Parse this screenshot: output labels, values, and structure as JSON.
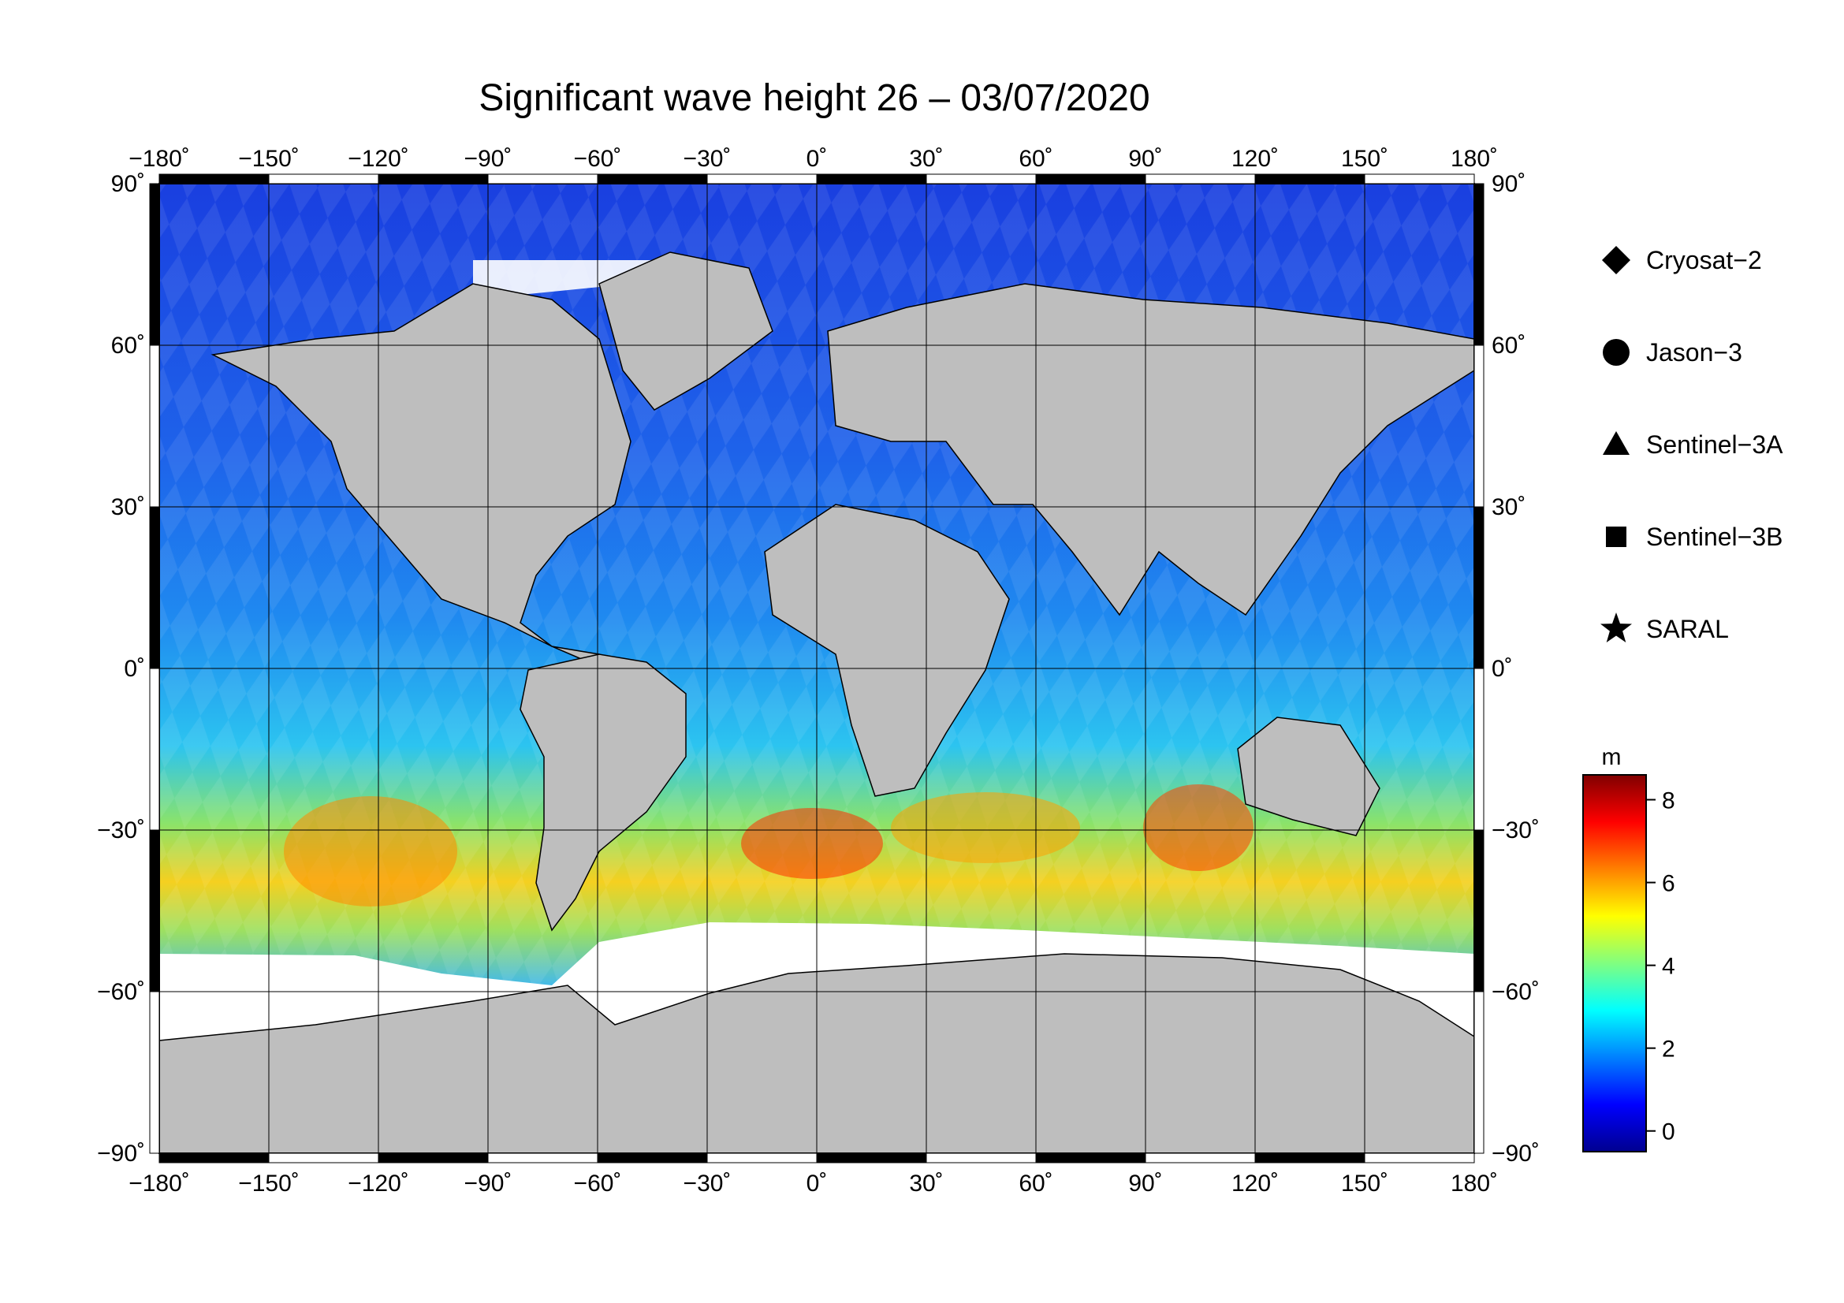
{
  "title": "Significant wave height 26 – 03/07/2020",
  "map": {
    "projection": "equirectangular",
    "lon_range": [
      -180,
      180
    ],
    "lat_range": [
      -90,
      90
    ],
    "lon_ticks": [
      {
        "value": -180,
        "label": "−180˚"
      },
      {
        "value": -150,
        "label": "−150˚"
      },
      {
        "value": -120,
        "label": "−120˚"
      },
      {
        "value": -90,
        "label": "−90˚"
      },
      {
        "value": -60,
        "label": "−60˚"
      },
      {
        "value": -30,
        "label": "−30˚"
      },
      {
        "value": 0,
        "label": "0˚"
      },
      {
        "value": 30,
        "label": "30˚"
      },
      {
        "value": 60,
        "label": "60˚"
      },
      {
        "value": 90,
        "label": "90˚"
      },
      {
        "value": 120,
        "label": "120˚"
      },
      {
        "value": 150,
        "label": "150˚"
      },
      {
        "value": 180,
        "label": "180˚"
      }
    ],
    "lat_ticks": [
      {
        "value": 90,
        "label": "90˚"
      },
      {
        "value": 60,
        "label": "60˚"
      },
      {
        "value": 30,
        "label": "30˚"
      },
      {
        "value": 0,
        "label": "0˚"
      },
      {
        "value": -30,
        "label": "−30˚"
      },
      {
        "value": -60,
        "label": "−60˚"
      },
      {
        "value": -90,
        "label": "−90˚"
      }
    ],
    "grid": true,
    "land_color": "#bebebe",
    "ice_color": "#ffffff",
    "ocean_background": "#1e5bd6"
  },
  "legend": {
    "placement": "right",
    "items": [
      {
        "symbol": "diamond",
        "label": "Cryosat−2"
      },
      {
        "symbol": "circle",
        "label": "Jason−3"
      },
      {
        "symbol": "triangle",
        "label": "Sentinel−3A"
      },
      {
        "symbol": "square",
        "label": "Sentinel−3B"
      },
      {
        "symbol": "star",
        "label": "SARAL"
      }
    ]
  },
  "colorbar": {
    "unit": "m",
    "min": -0.5,
    "max": 8.6,
    "ticks": [
      {
        "value": 8,
        "label": "8"
      },
      {
        "value": 6,
        "label": "6"
      },
      {
        "value": 4,
        "label": "4"
      },
      {
        "value": 2,
        "label": "2"
      },
      {
        "value": 0,
        "label": "0"
      }
    ],
    "colors": [
      "#00008f",
      "#0000ff",
      "#0080ff",
      "#00ffff",
      "#80ff80",
      "#ffff00",
      "#ff8000",
      "#ff0000",
      "#800000"
    ]
  }
}
